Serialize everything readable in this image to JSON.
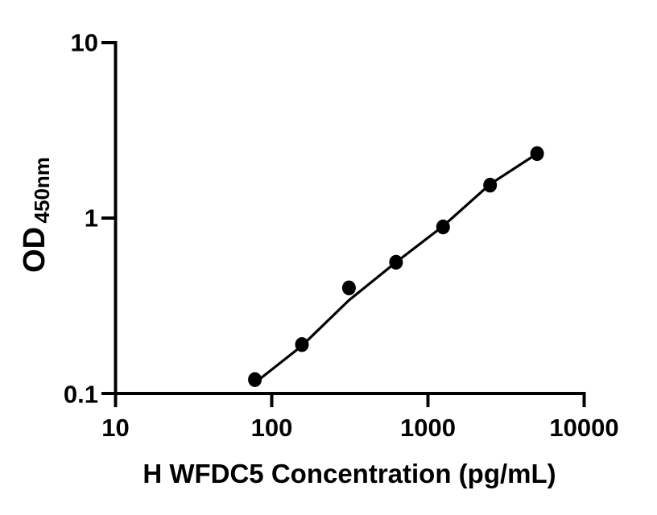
{
  "figure": {
    "background_color": "#ffffff",
    "foreground_color": "#000000"
  },
  "chart_data": {
    "type": "scatter",
    "title": "",
    "xlabel": "H WFDC5 Concentration (pg/mL)",
    "ylabel_main": "OD",
    "ylabel_subscript": "450nm",
    "x_scale": "log10",
    "y_scale": "log10",
    "xlim": [
      10,
      10000
    ],
    "ylim": [
      0.1,
      10
    ],
    "x_tick_values": [
      10,
      100,
      1000,
      10000
    ],
    "x_tick_labels": [
      "10",
      "100",
      "1000",
      "10000"
    ],
    "y_tick_values": [
      0.1,
      1,
      10
    ],
    "y_tick_labels": [
      "0.1",
      "1",
      "10"
    ],
    "grid": false,
    "legend": "none",
    "marker_color": "#000000",
    "line_color": "#000000",
    "series": [
      {
        "name": "standard-points",
        "type": "scatter",
        "marker": "filled-circle",
        "x": [
          78,
          156,
          312,
          625,
          1250,
          2500,
          5000
        ],
        "y": [
          0.12,
          0.19,
          0.4,
          0.56,
          0.89,
          1.54,
          2.33
        ]
      },
      {
        "name": "fitted-line",
        "type": "line",
        "x": [
          78,
          156,
          312,
          625,
          1250,
          2500,
          5000
        ],
        "y": [
          0.115,
          0.187,
          0.34,
          0.56,
          0.9,
          1.56,
          2.33
        ]
      }
    ]
  }
}
